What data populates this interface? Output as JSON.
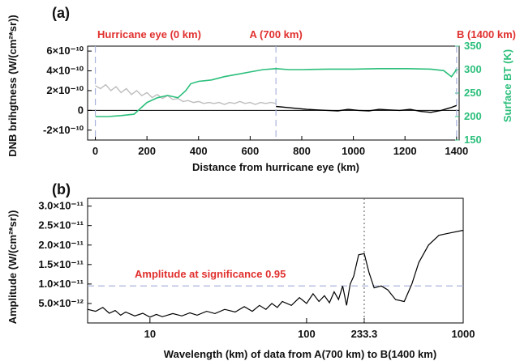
{
  "chart_data": [
    {
      "type": "line",
      "panel_label": "(a)",
      "xlabel": "Distance from hurricane eye (km)",
      "ylabel": "DNB brihgtness (W/(cm²*sr))",
      "y2label": "Surface BT (K)",
      "xlim": [
        -30,
        1410
      ],
      "ylim": [
        -3e-10,
        6.5e-10
      ],
      "y2lim": [
        150,
        350
      ],
      "x_ticks": [
        0,
        200,
        400,
        600,
        800,
        1000,
        1200,
        1400
      ],
      "y_ticks": [
        {
          "value": -2e-10,
          "label": "-2×10⁻¹⁰"
        },
        {
          "value": 0,
          "label": "0"
        },
        {
          "value": 2e-10,
          "label": "2×10⁻¹⁰"
        },
        {
          "value": 4e-10,
          "label": "4×10⁻¹⁰"
        },
        {
          "value": 6e-10,
          "label": "6×10⁻¹⁰"
        }
      ],
      "y2_ticks": [
        150,
        200,
        250,
        300,
        350
      ],
      "markers": [
        {
          "x": 0,
          "label": "Hurricane eye (0 km)"
        },
        {
          "x": 700,
          "label": "A (700 km)"
        },
        {
          "x": 1400,
          "label": "B (1400 km)"
        }
      ],
      "colors": {
        "dnb_near": "#bdbdbd",
        "dnb_far": "#000000",
        "bt": "#2bbf7b",
        "marker": "#a9b4dc",
        "label": "#e0302e"
      },
      "series": [
        {
          "axis": "left",
          "x": [
            0,
            20,
            40,
            60,
            80,
            100,
            120,
            140,
            160,
            180,
            200,
            220,
            240,
            260,
            280,
            300,
            320,
            340,
            360,
            380,
            400,
            420,
            440,
            460,
            480,
            500,
            520,
            540,
            560,
            580,
            600,
            620,
            640,
            660,
            680,
            700
          ],
          "values": [
            2.5e-10,
            2.2e-10,
            2.6e-10,
            2e-10,
            2.4e-10,
            1.8e-10,
            2.2e-10,
            1.6e-10,
            2e-10,
            1.5e-10,
            1.8e-10,
            1.3e-10,
            1.6e-10,
            1.2e-10,
            1.5e-10,
            1.1e-10,
            1.2e-10,
            9e-11,
            1e-10,
            8e-11,
            9e-11,
            7e-11,
            8e-11,
            7e-11,
            8e-11,
            6e-11,
            8e-11,
            7e-11,
            9e-11,
            7e-11,
            8e-11,
            6e-11,
            8e-11,
            7e-11,
            8e-11,
            7e-11
          ]
        },
        {
          "axis": "left",
          "x": [
            700,
            740,
            780,
            820,
            860,
            900,
            940,
            980,
            1020,
            1060,
            1100,
            1140,
            1180,
            1220,
            1260,
            1300,
            1340,
            1380,
            1400
          ],
          "values": [
            4e-11,
            3e-11,
            2e-11,
            1e-11,
            5e-12,
            0.0,
            -5e-12,
            1e-11,
            0.0,
            -5e-12,
            1e-11,
            5e-12,
            0.0,
            1e-11,
            -1e-11,
            -2e-11,
            0.0,
            3e-11,
            5e-11
          ]
        },
        {
          "axis": "right",
          "x": [
            0,
            50,
            100,
            150,
            180,
            200,
            240,
            280,
            320,
            350,
            370,
            400,
            450,
            500,
            550,
            600,
            650,
            700,
            750,
            800,
            900,
            1000,
            1100,
            1200,
            1300,
            1350,
            1380,
            1400
          ],
          "values": [
            200,
            200,
            202,
            205,
            220,
            230,
            240,
            245,
            240,
            255,
            270,
            275,
            278,
            285,
            290,
            295,
            300,
            302,
            300,
            300,
            301,
            301,
            302,
            302,
            301,
            298,
            285,
            300
          ]
        }
      ]
    },
    {
      "type": "line",
      "panel_label": "(b)",
      "xlabel": "Wavelength (km) of data from A(700 km) to B(1400 km)",
      "ylabel": "Amplitude (W/(cm²*sr))",
      "xscale": "log",
      "xlim": [
        4,
        1000
      ],
      "ylim": [
        0,
        3.2e-11
      ],
      "x_ticks": [
        {
          "value": 10,
          "label": "10"
        },
        {
          "value": 100,
          "label": "100"
        },
        {
          "value": 233.3,
          "label": "233.3"
        },
        {
          "value": 1000,
          "label": "1000"
        }
      ],
      "y_ticks": [
        {
          "value": 5e-12,
          "label": "5.0×10⁻¹²"
        },
        {
          "value": 1e-11,
          "label": "1.0×10⁻¹¹"
        },
        {
          "value": 1.5e-11,
          "label": "1.5×10⁻¹¹"
        },
        {
          "value": 2e-11,
          "label": "2.0×10⁻¹¹"
        },
        {
          "value": 2.5e-11,
          "label": "2.5×10⁻¹¹"
        },
        {
          "value": 3e-11,
          "label": "3.0×10⁻¹¹"
        }
      ],
      "significance": {
        "value": 9.5e-12,
        "label": "Amplitude at significance 0.95"
      },
      "vline": 233.3,
      "colors": {
        "line": "#000000",
        "significance": "#a9b4dc",
        "vline": "#555555",
        "label": "#e0302e"
      },
      "series": [
        {
          "x": [
            4,
            4.5,
            5,
            5.5,
            6,
            6.5,
            7,
            8,
            9,
            10,
            11,
            12,
            14,
            16,
            18,
            20,
            23,
            26,
            30,
            35,
            40,
            45,
            50,
            55,
            60,
            65,
            70,
            80,
            90,
            100,
            110,
            120,
            130,
            140,
            150,
            160,
            170,
            180,
            190,
            200,
            215,
            233.3,
            250,
            270,
            300,
            330,
            370,
            420,
            470,
            520,
            600,
            700,
            800,
            1000
          ],
          "values": [
            3.5e-12,
            3e-12,
            4e-12,
            2.5e-12,
            3.2e-12,
            2e-12,
            2.8e-12,
            1.8e-12,
            2.5e-12,
            1.5e-12,
            2.2e-12,
            1.6e-12,
            2.4e-12,
            1.8e-12,
            2.6e-12,
            2e-12,
            3e-12,
            2.4e-12,
            3.5e-12,
            2.8e-12,
            4.2e-12,
            3e-12,
            4.5e-12,
            3.5e-12,
            5e-12,
            4e-12,
            5.5e-12,
            4.5e-12,
            6.5e-12,
            5e-12,
            7.5e-12,
            5.5e-12,
            7e-12,
            5.2e-12,
            8e-12,
            6e-12,
            9.5e-12,
            4.5e-12,
            1e-11,
            1.2e-11,
            1.75e-11,
            1.78e-11,
            1.3e-11,
            9e-12,
            9.5e-12,
            8.5e-12,
            6e-12,
            5.5e-12,
            1e-11,
            1.55e-11,
            2e-11,
            2.25e-11,
            2.3e-11,
            2.38e-11
          ]
        }
      ]
    }
  ]
}
